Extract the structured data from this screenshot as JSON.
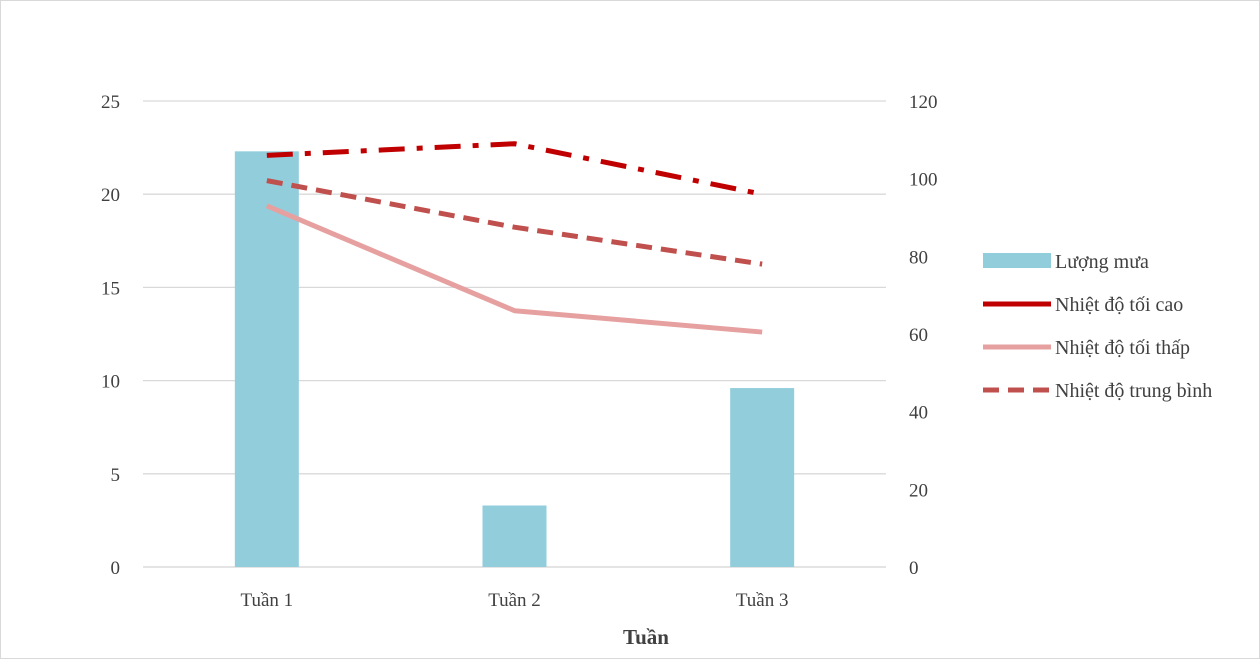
{
  "chart_data": {
    "type": "bar",
    "categories": [
      "Tuần 1",
      "Tuần 2",
      "Tuần 3"
    ],
    "title": "",
    "xlabel": "Tuần",
    "ylabel": "",
    "ylim": [
      0,
      25
    ],
    "y2lim": [
      0,
      120
    ],
    "yticks": [
      "0",
      "5",
      "10",
      "15",
      "20",
      "25"
    ],
    "y2ticks": [
      "0",
      "20",
      "40",
      "60",
      "80",
      "100",
      "120"
    ],
    "grid": true,
    "legend_position": "right",
    "series": [
      {
        "name": "Lượng mưa",
        "type": "bar",
        "axis": "left",
        "color": "#92cddc",
        "values": [
          22.3,
          3.3,
          9.6
        ]
      },
      {
        "name": "Nhiệt độ tối cao",
        "type": "line",
        "axis": "right",
        "color": "#c00000",
        "dash": "dash-dot",
        "values": [
          106,
          109,
          96
        ]
      },
      {
        "name": "Nhiệt độ tối thấp",
        "type": "line",
        "axis": "right",
        "color": "#e6a0a0",
        "dash": "solid",
        "values": [
          93,
          66,
          60.5
        ]
      },
      {
        "name": "Nhiệt độ trung bình",
        "type": "line",
        "axis": "right",
        "color": "#c0504d",
        "dash": "dash",
        "values": [
          99.5,
          87.5,
          78
        ]
      }
    ]
  }
}
